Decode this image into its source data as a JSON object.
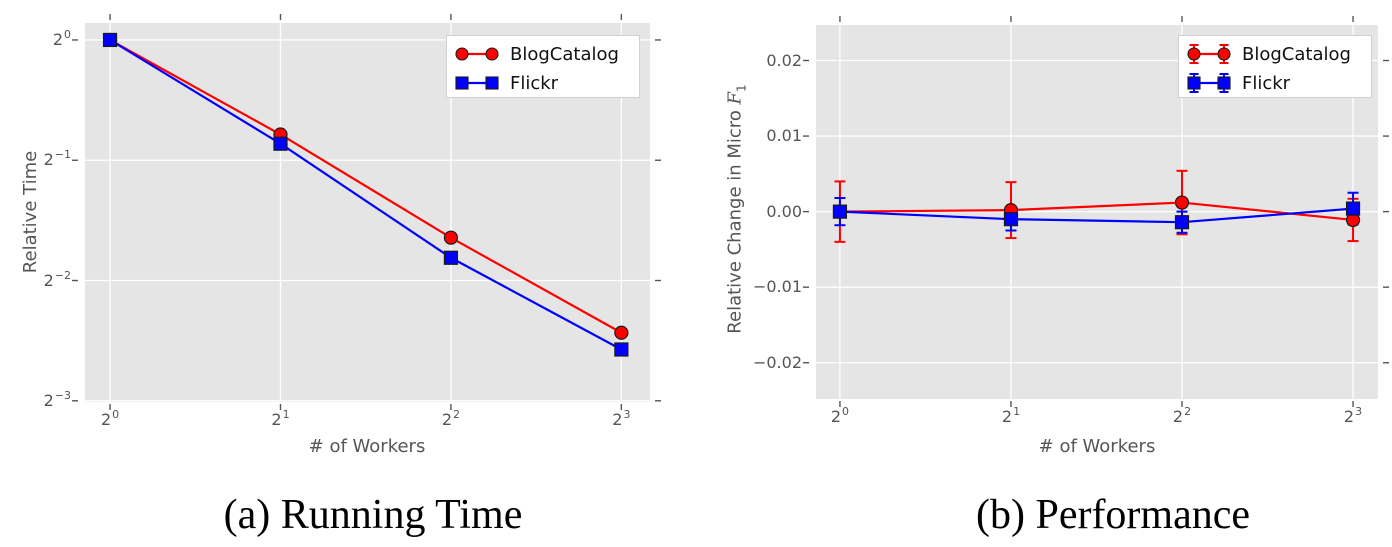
{
  "figure": {
    "background": "#ffffff",
    "plot_background": "#e5e5e5",
    "grid_color": "#ffffff",
    "tick_color": "#555555",
    "axis_label_color": "#555555",
    "caption_color": "#000000",
    "legend_background": "#ffffff",
    "legend_border": "#d0d0d0",
    "legend_text_color": "#111111",
    "marker_edge_color": "#1a1a1a"
  },
  "chart_data": [
    {
      "id": "running-time",
      "type": "line",
      "caption": "(a) Running Time",
      "xlabel": "# of Workers",
      "ylabel": "Relative Time",
      "ylabel_segments": [
        {
          "t": "Relative Time"
        }
      ],
      "xscale": "log2",
      "yscale": "log2",
      "grid": true,
      "legend_position": "upper right",
      "x": [
        1,
        2,
        4,
        8
      ],
      "x_ticklabels": [
        "2^0",
        "2^1",
        "2^2",
        "2^3"
      ],
      "y_ticks": [
        1,
        0.5,
        0.25,
        0.125
      ],
      "y_ticklabels": [
        "2^0",
        "2^−1",
        "2^−2",
        "2^−3"
      ],
      "xlim_log2": [
        -0.147,
        3.168
      ],
      "ylim_log2": [
        -3.01,
        0.141
      ],
      "series": [
        {
          "name": "BlogCatalog",
          "color": "#ff0000",
          "marker": "circle",
          "values": [
            1.0,
            0.58,
            0.32,
            0.185
          ]
        },
        {
          "name": "Flickr",
          "color": "#0000ff",
          "marker": "square",
          "values": [
            1.0,
            0.55,
            0.285,
            0.168
          ]
        }
      ]
    },
    {
      "id": "performance",
      "type": "errorbar-line",
      "caption": "(b) Performance",
      "xlabel": "# of Workers",
      "ylabel": "Relative Change in Micro F1",
      "ylabel_segments": [
        {
          "t": "Relative Change in Micro "
        },
        {
          "t": "F",
          "style": "mathit"
        },
        {
          "t": "1",
          "style": "sub"
        }
      ],
      "xscale": "log2",
      "yscale": "linear",
      "grid": true,
      "legend_position": "upper right",
      "x": [
        1,
        2,
        4,
        8
      ],
      "x_ticklabels": [
        "2^0",
        "2^1",
        "2^2",
        "2^3"
      ],
      "y_ticks": [
        0.02,
        0.01,
        0,
        -0.01,
        -0.02
      ],
      "y_ticklabels": [
        "0.02",
        "0.01",
        "0.00",
        "−0.01",
        "−0.02"
      ],
      "xlim_log2": [
        -0.14,
        3.146
      ],
      "ylim": [
        -0.0248,
        0.0247
      ],
      "series": [
        {
          "name": "BlogCatalog",
          "color": "#ff0000",
          "marker": "circle",
          "values": [
            0.0,
            0.0002,
            0.0012,
            -0.0011
          ],
          "yerr": [
            0.004,
            0.0037,
            0.0042,
            0.0028
          ]
        },
        {
          "name": "Flickr",
          "color": "#0000ff",
          "marker": "square",
          "values": [
            0.0,
            -0.001,
            -0.0014,
            0.0004
          ],
          "yerr": [
            0.0018,
            0.0015,
            0.0014,
            0.0021
          ]
        }
      ]
    }
  ]
}
